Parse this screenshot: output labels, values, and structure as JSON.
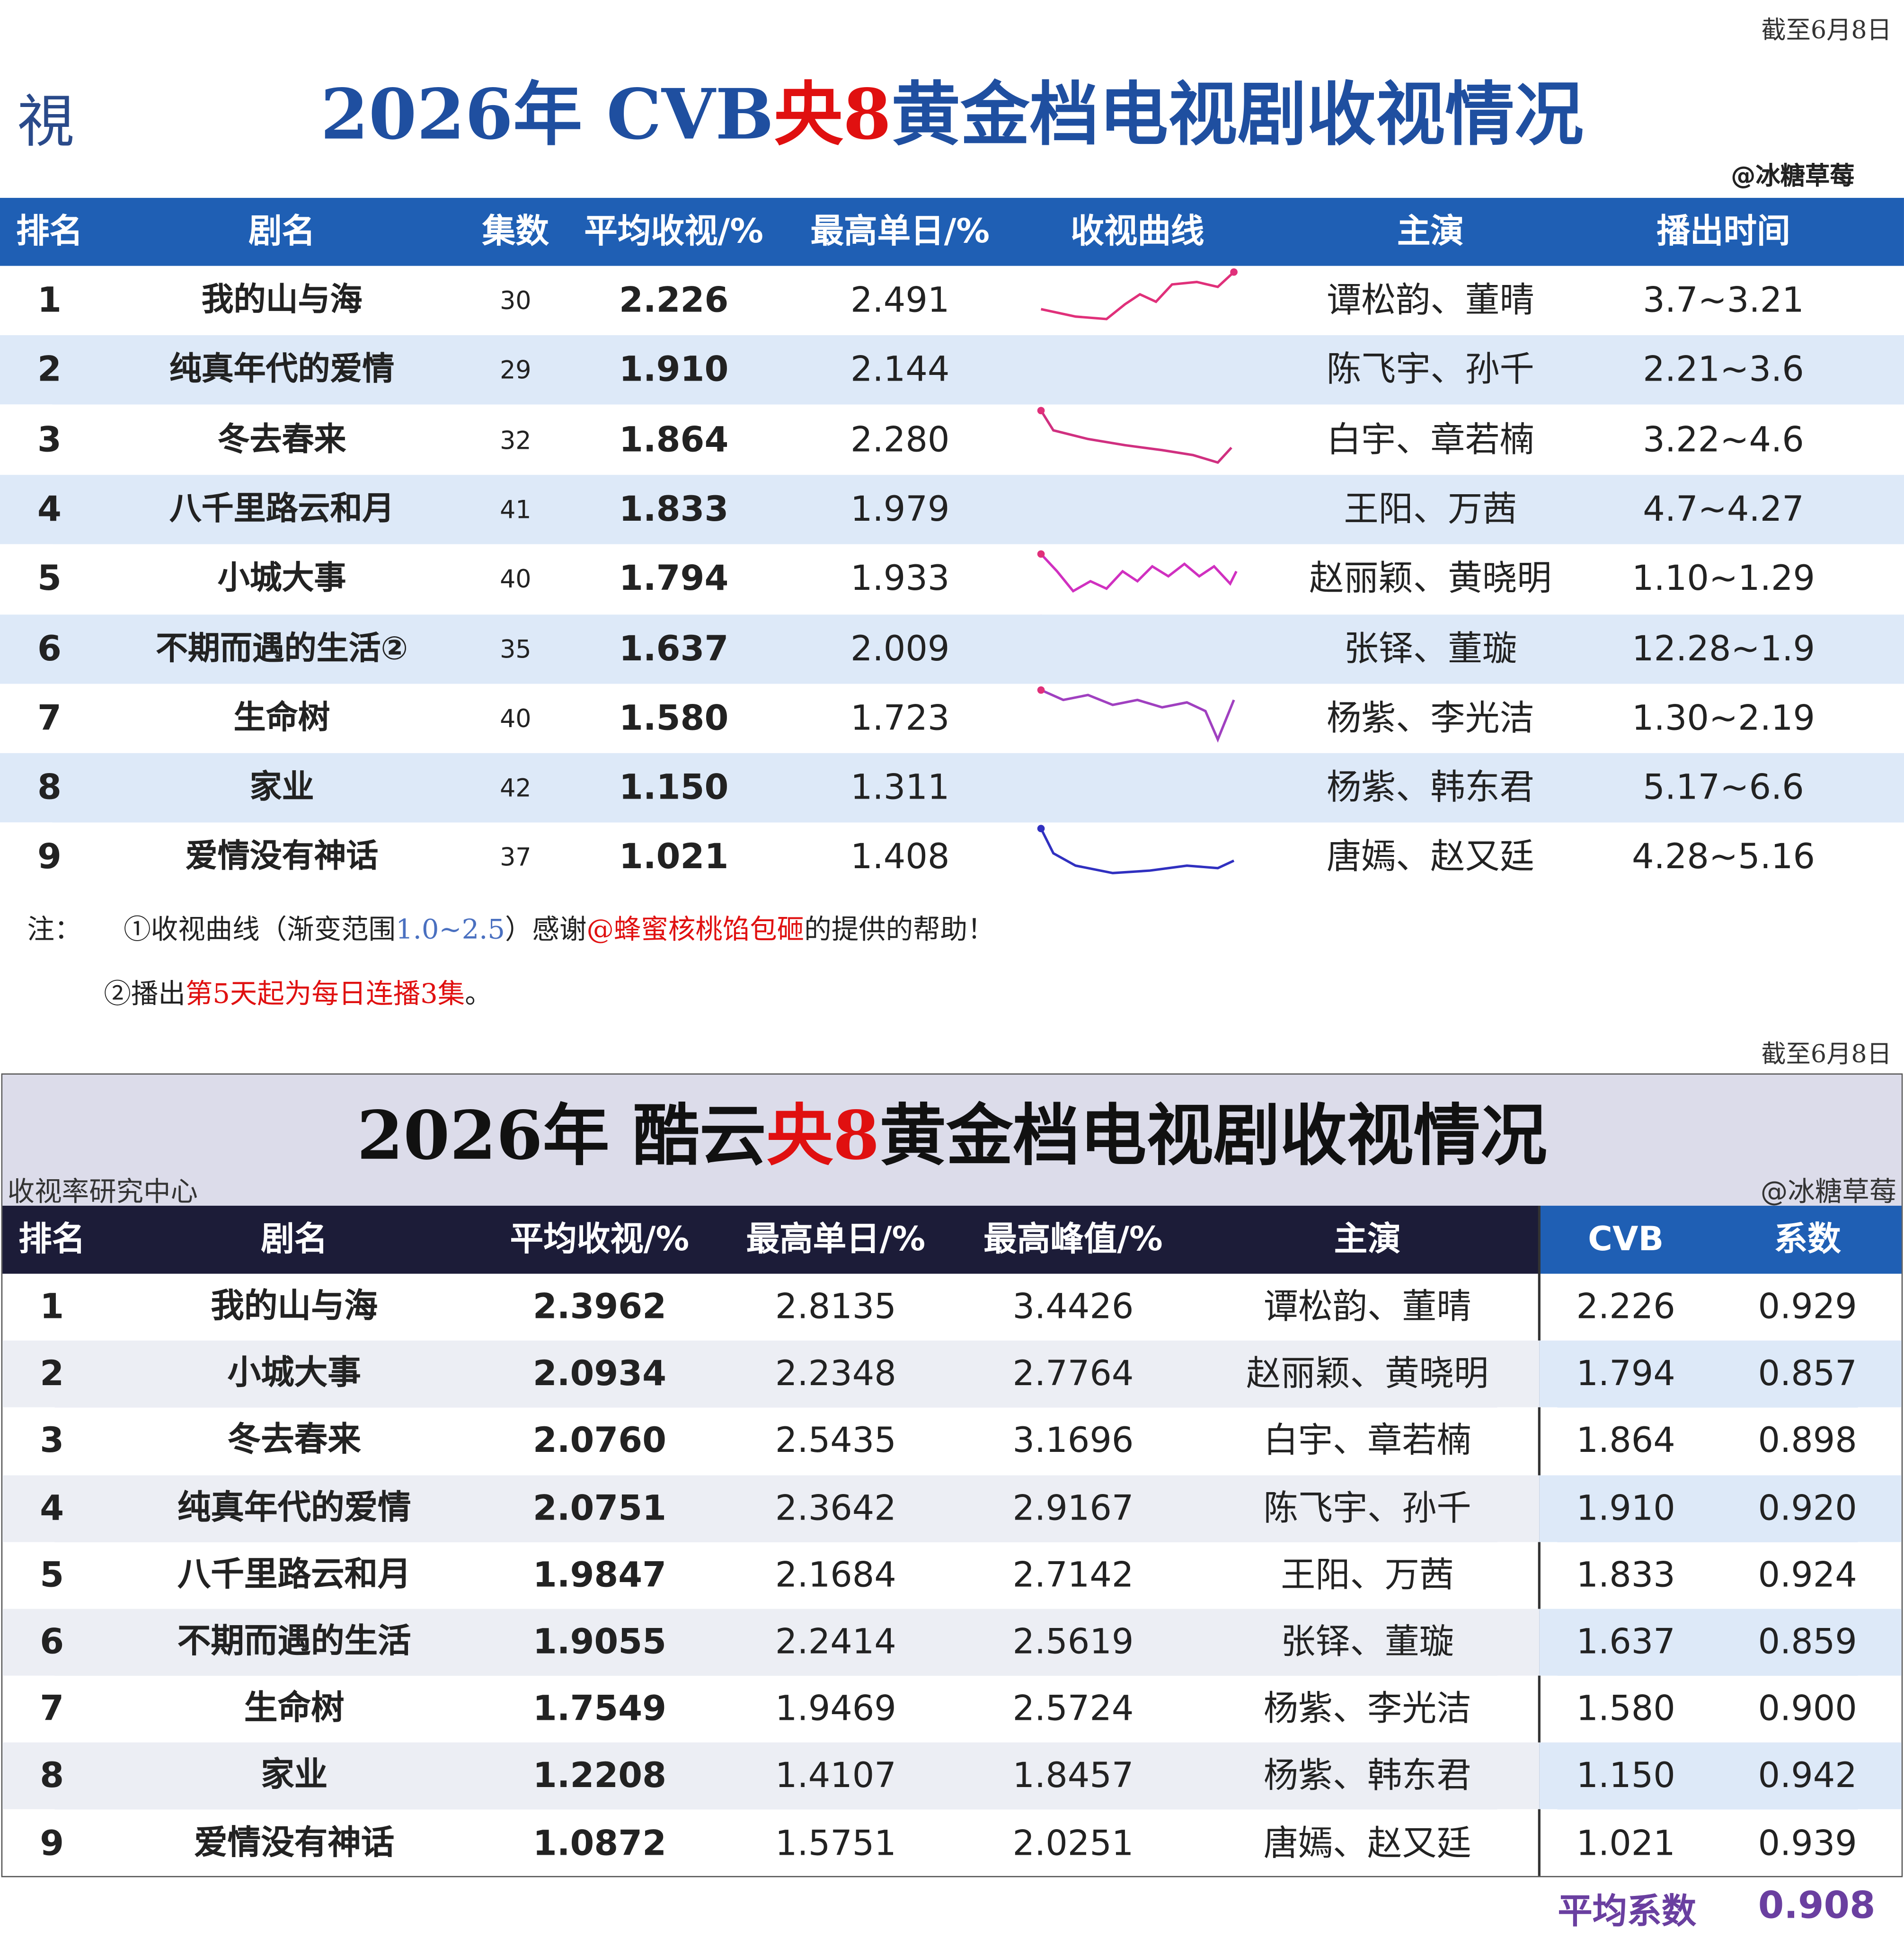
{
  "top": {
    "date_note": "截至6月8日",
    "logo": "視",
    "title_parts": [
      "2026年 CVB",
      "央8",
      "黄金档电视剧收视情况"
    ],
    "credit": "@冰糖草莓",
    "headers": [
      "排名",
      "剧名",
      "集数",
      "平均收视/%",
      "最高单日/%",
      "收视曲线",
      "主演",
      "播出时间"
    ],
    "rows": [
      [
        "1",
        "我的山与海",
        "30",
        "2.226",
        "2.491",
        "谭松韵、董晴",
        "3.7~3.21"
      ],
      [
        "2",
        "纯真年代的爱情",
        "29",
        "1.910",
        "2.144",
        "陈飞宇、孙千",
        "2.21~3.6"
      ],
      [
        "3",
        "冬去春来",
        "32",
        "1.864",
        "2.280",
        "白宇、章若楠",
        "3.22~4.6"
      ],
      [
        "4",
        "八千里路云和月",
        "41",
        "1.833",
        "1.979",
        "王阳、万茜",
        "4.7~4.27"
      ],
      [
        "5",
        "小城大事",
        "40",
        "1.794",
        "1.933",
        "赵丽颖、黄晓明",
        "1.10~1.29"
      ],
      [
        "6",
        "不期而遇的生活②",
        "35",
        "1.637",
        "2.009",
        "张铎、董璇",
        "12.28~1.9"
      ],
      [
        "7",
        "生命树",
        "40",
        "1.580",
        "1.723",
        "杨紫、李光洁",
        "1.30~2.19"
      ],
      [
        "8",
        "家业",
        "42",
        "1.150",
        "1.311",
        "杨紫、韩东君",
        "5.17~6.6"
      ],
      [
        "9",
        "爱情没有神话",
        "37",
        "1.021",
        "1.408",
        "唐嫣、赵又廷",
        "4.28~5.16"
      ]
    ],
    "note1": [
      "注：",
      "①收视曲线（渐变范围",
      "1.0~2.5",
      "）感谢",
      "@蜂蜜核桃馅包砸",
      "的提供的帮助！"
    ],
    "note2": [
      "②播出",
      "第5天起为每日连播3集",
      "。"
    ]
  },
  "bottom": {
    "date_note": "截至6月8日",
    "title_parts": [
      "2026年 酷云",
      "央8",
      "黄金档电视剧收视情况"
    ],
    "source": "收视率研究中心",
    "credit": "@冰糖草莓",
    "headers": [
      "排名",
      "剧名",
      "平均收视/%",
      "最高单日/%",
      "最高峰值/%",
      "主演",
      "CVB",
      "系数"
    ],
    "rows": [
      [
        "1",
        "我的山与海",
        "2.3962",
        "2.8135",
        "3.4426",
        "谭松韵、董晴",
        "2.226",
        "0.929"
      ],
      [
        "2",
        "小城大事",
        "2.0934",
        "2.2348",
        "2.7764",
        "赵丽颖、黄晓明",
        "1.794",
        "0.857"
      ],
      [
        "3",
        "冬去春来",
        "2.0760",
        "2.5435",
        "3.1696",
        "白宇、章若楠",
        "1.864",
        "0.898"
      ],
      [
        "4",
        "纯真年代的爱情",
        "2.0751",
        "2.3642",
        "2.9167",
        "陈飞宇、孙千",
        "1.910",
        "0.920"
      ],
      [
        "5",
        "八千里路云和月",
        "1.9847",
        "2.1684",
        "2.7142",
        "王阳、万茜",
        "1.833",
        "0.924"
      ],
      [
        "6",
        "不期而遇的生活",
        "1.9055",
        "2.2414",
        "2.5619",
        "张铎、董璇",
        "1.637",
        "0.859"
      ],
      [
        "7",
        "生命树",
        "1.7549",
        "1.9469",
        "2.5724",
        "杨紫、李光洁",
        "1.580",
        "0.900"
      ],
      [
        "8",
        "家业",
        "1.2208",
        "1.4107",
        "1.8457",
        "杨紫、韩东君",
        "1.150",
        "0.942"
      ],
      [
        "9",
        "爱情没有神话",
        "1.0872",
        "1.5751",
        "2.0251",
        "唐嫣、赵又廷",
        "1.021",
        "0.939"
      ]
    ],
    "avg_label": "平均系数",
    "avg_value": "0.908"
  }
}
